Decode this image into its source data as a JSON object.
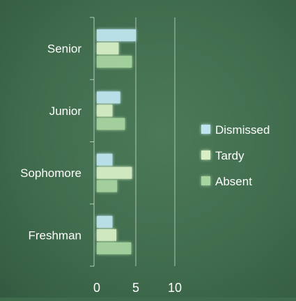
{
  "chart_data": {
    "type": "bar",
    "orientation": "horizontal",
    "categories": [
      "Freshman",
      "Sophomore",
      "Junior",
      "Senior"
    ],
    "series": [
      {
        "name": "Dismissed",
        "values": [
          2,
          2,
          3,
          5
        ],
        "color": "#bfe4ef"
      },
      {
        "name": "Tardy",
        "values": [
          2.5,
          4.5,
          2,
          2.8
        ],
        "color": "#d8efc6"
      },
      {
        "name": "Absent",
        "values": [
          4.4,
          2.6,
          3.6,
          4.5
        ],
        "color": "#a8d4a0"
      }
    ],
    "xlim": [
      0,
      10
    ],
    "x_ticks": [
      "0",
      "5",
      "10"
    ],
    "grid": true,
    "legend_position": "right",
    "title": "",
    "xlabel": "",
    "ylabel": ""
  }
}
